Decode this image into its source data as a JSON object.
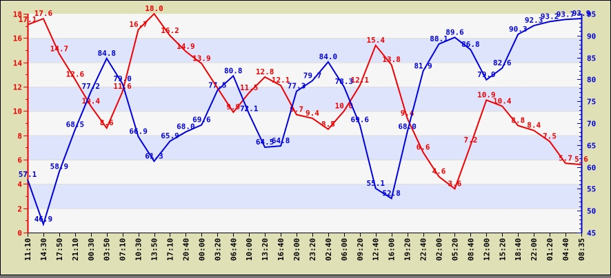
{
  "chart_data": {
    "type": "line",
    "title": "",
    "legend_position": "none",
    "grid": "alternating horizontal bands, step 2 left-axis units",
    "categories": [
      "11:10",
      "14:30",
      "17:50",
      "21:10",
      "00:30",
      "03:50",
      "07:10",
      "10:30",
      "13:50",
      "17:10",
      "20:40",
      "00:00",
      "03:20",
      "06:40",
      "10:00",
      "13:20",
      "16:40",
      "20:00",
      "23:20",
      "02:40",
      "06:00",
      "09:20",
      "12:40",
      "16:00",
      "19:20",
      "22:40",
      "02:00",
      "05:20",
      "08:40",
      "12:00",
      "15:20",
      "18:40",
      "22:00",
      "01:20",
      "04:40",
      "08:35"
    ],
    "series": [
      {
        "id": "red",
        "axis": "left",
        "color": "#ee0000",
        "values": [
          17.1,
          17.6,
          14.7,
          12.6,
          10.4,
          8.6,
          11.6,
          16.7,
          18.0,
          16.2,
          14.9,
          13.9,
          11.9,
          9.9,
          11.5,
          12.8,
          12.1,
          9.7,
          9.4,
          8.5,
          10.0,
          12.1,
          15.4,
          13.8,
          9.4,
          6.6,
          4.6,
          3.6,
          7.2,
          10.9,
          10.4,
          8.8,
          8.4,
          7.5,
          5.7,
          5.6
        ],
        "labels": [
          "17.1",
          "17.6",
          "14.7",
          "12.6",
          "10.4",
          "8.6",
          "11.6",
          "16.7",
          "18.0",
          "16.2",
          "14.9",
          "13.9",
          null,
          "9.9",
          "11.5",
          "12.8",
          "12.1",
          "9.7",
          "9.4",
          "8.5",
          "10.0",
          "12.1",
          "15.4",
          "13.8",
          "9.4",
          "6.6",
          "4.6",
          "3.6",
          "7.2",
          "10.9",
          "10.4",
          "8.8",
          "8.4",
          "7.5",
          "5.7",
          "5.6"
        ]
      },
      {
        "id": "blue",
        "axis": "right",
        "color": "#0000dd",
        "values": [
          57.1,
          46.9,
          58.9,
          68.5,
          77.2,
          84.8,
          79.0,
          66.9,
          61.3,
          65.9,
          68.0,
          69.6,
          77.5,
          80.8,
          72.1,
          64.5,
          64.8,
          77.3,
          79.7,
          84.0,
          78.3,
          69.6,
          55.1,
          52.8,
          68.0,
          81.9,
          88.1,
          89.6,
          86.8,
          79.9,
          82.6,
          90.3,
          92.3,
          93.2,
          93.7,
          93.9
        ],
        "labels": [
          "57.1",
          "46.9",
          "58.9",
          "68.5",
          "77.2",
          "84.8",
          "79.0",
          "66.9",
          "61.3",
          "65.9",
          "68.0",
          "69.6",
          "77.5",
          "80.8",
          "72.1",
          "64.5",
          "64.8",
          "77.3",
          "79.7",
          "84.0",
          "78.3",
          "69.6",
          "55.1",
          "52.8",
          "68.0",
          "81.9",
          "88.1",
          "89.6",
          "86.8",
          "79.9",
          "82.6",
          "90.3",
          "92.3",
          "93.2",
          "93.7",
          "93.9"
        ]
      }
    ],
    "left_axis": {
      "min": 0,
      "max": 18,
      "major_step": 2,
      "minor_step": 1,
      "tick_labels": [
        "0",
        "2",
        "4",
        "6",
        "8",
        "10",
        "12",
        "14",
        "16",
        "18"
      ],
      "color": "#ee0000"
    },
    "right_axis": {
      "min": 45,
      "max": 95,
      "major_step": 5,
      "minor_step": 1,
      "tick_labels": [
        "45",
        "50",
        "55",
        "60",
        "65",
        "70",
        "75",
        "80",
        "85",
        "90",
        "95"
      ],
      "color": "#0000dd"
    },
    "x_axis": {
      "color": "#000000",
      "label_rotation": -90
    },
    "colors": {
      "background": "#dfe0b6",
      "band_light": "#f6f6f6",
      "band_dark": "#dde4fb",
      "band_edge": "#dcdcdc",
      "border": "#000000"
    }
  }
}
